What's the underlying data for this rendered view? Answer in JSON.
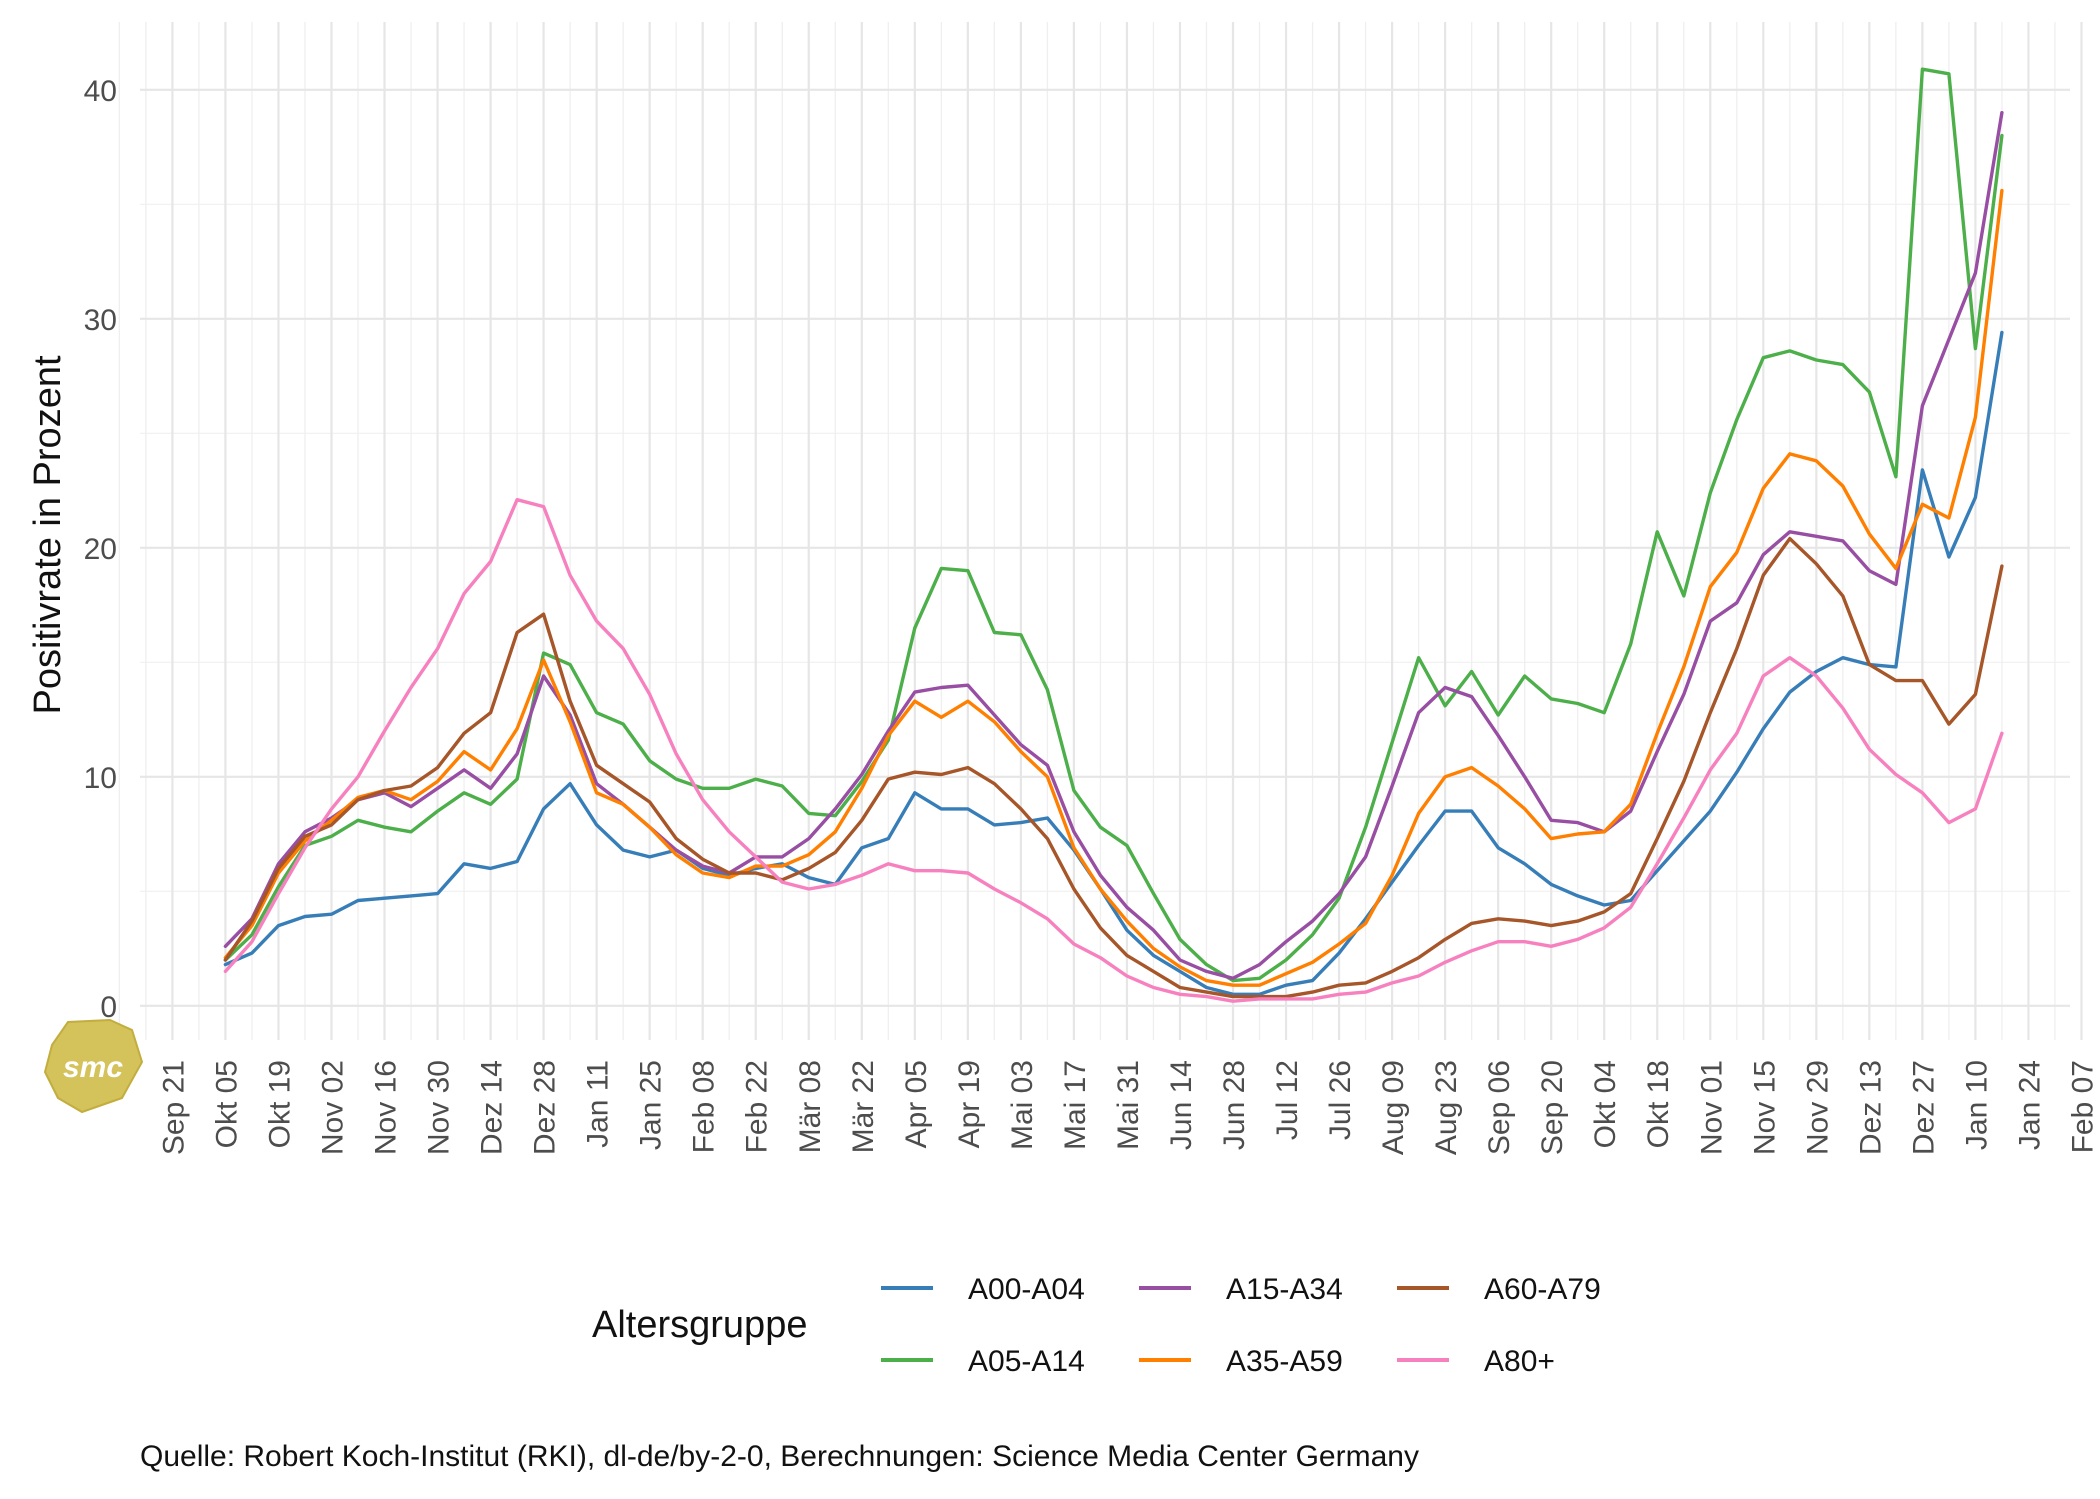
{
  "chart_data": {
    "type": "line",
    "ylabel": "Positivrate in Prozent",
    "xlabel": "",
    "ylim": [
      -2,
      43.2
    ],
    "y_ticks": [
      0,
      10,
      20,
      30,
      40
    ],
    "grid": true,
    "legend_title": "Altersgruppe",
    "legend_position": "bottom",
    "caption": "Quelle: Robert Koch-Institut (RKI), dl-de/by-2-0, Berechnungen: Science Media Center Germany",
    "logo_text": "smc",
    "x_tick_labels": [
      "Sep 21",
      "Okt 05",
      "Okt 19",
      "Nov 02",
      "Nov 16",
      "Nov 30",
      "Dez 14",
      "Dez 28",
      "Jan 11",
      "Jan 25",
      "Feb 08",
      "Feb 22",
      "Mär 08",
      "Mär 22",
      "Apr 05",
      "Apr 19",
      "Mai 03",
      "Mai 17",
      "Mai 31",
      "Jun 14",
      "Jun 28",
      "Jul 12",
      "Jul 26",
      "Aug 09",
      "Aug 23",
      "Sep 06",
      "Sep 20",
      "Okt 04",
      "Okt 18",
      "Nov 01",
      "Nov 15",
      "Nov 29",
      "Dez 13",
      "Dez 27",
      "Jan 10",
      "Jan 24",
      "Feb 07"
    ],
    "series": [
      {
        "name": "A00-A04",
        "color": "#377eb8",
        "values": [
          1.8,
          2.3,
          3.5,
          3.9,
          4.0,
          4.6,
          4.7,
          4.8,
          4.9,
          6.2,
          6.0,
          6.3,
          8.6,
          9.7,
          7.9,
          6.8,
          6.5,
          6.8,
          6.0,
          5.7,
          6.0,
          6.2,
          5.6,
          5.3,
          6.9,
          7.3,
          9.3,
          8.6,
          8.6,
          7.9,
          8.0,
          8.2,
          6.8,
          5.1,
          3.3,
          2.2,
          1.5,
          0.8,
          0.5,
          0.5,
          0.9,
          1.1,
          2.3,
          3.8,
          5.4,
          7.0,
          8.5,
          8.5,
          6.9,
          6.2,
          5.3,
          4.8,
          4.4,
          4.6,
          5.9,
          7.2,
          8.5,
          10.2,
          12.1,
          13.7,
          14.6,
          15.2,
          14.9,
          14.8,
          23.4,
          19.6,
          22.2,
          29.4
        ]
      },
      {
        "name": "A05-A14",
        "color": "#4daf4a",
        "values": [
          2.0,
          3.1,
          5.2,
          7.0,
          7.4,
          8.1,
          7.8,
          7.6,
          8.5,
          9.3,
          8.8,
          9.9,
          15.4,
          14.9,
          12.8,
          12.3,
          10.7,
          9.9,
          9.5,
          9.5,
          9.9,
          9.6,
          8.4,
          8.3,
          9.8,
          11.6,
          16.5,
          19.1,
          19.0,
          16.3,
          16.2,
          13.8,
          9.4,
          7.8,
          7.0,
          4.9,
          2.9,
          1.8,
          1.1,
          1.2,
          2.0,
          3.1,
          4.7,
          7.8,
          11.5,
          15.2,
          13.1,
          14.6,
          12.7,
          14.4,
          13.4,
          13.2,
          12.8,
          15.8,
          20.7,
          17.9,
          22.4,
          25.6,
          28.3,
          28.6,
          28.2,
          28.0,
          26.8,
          23.1,
          40.9,
          40.7,
          28.7,
          38.0
        ]
      },
      {
        "name": "A15-A34",
        "color": "#984ea3",
        "values": [
          2.6,
          3.8,
          6.2,
          7.6,
          8.2,
          9.0,
          9.3,
          8.7,
          9.5,
          10.3,
          9.5,
          11.0,
          14.4,
          12.7,
          9.7,
          8.8,
          7.8,
          6.8,
          6.1,
          5.8,
          6.5,
          6.5,
          7.3,
          8.6,
          10.1,
          12.0,
          13.7,
          13.9,
          14.0,
          12.7,
          11.4,
          10.5,
          7.6,
          5.7,
          4.3,
          3.3,
          2.0,
          1.5,
          1.2,
          1.8,
          2.8,
          3.7,
          4.9,
          6.5,
          9.6,
          12.8,
          13.9,
          13.5,
          11.8,
          10.0,
          8.1,
          8.0,
          7.6,
          8.5,
          11.1,
          13.6,
          16.8,
          17.6,
          19.7,
          20.7,
          20.5,
          20.3,
          19.0,
          18.4,
          26.2,
          29.1,
          32.0,
          39.0
        ]
      },
      {
        "name": "A35-A59",
        "color": "#ff7f00",
        "values": [
          2.1,
          3.5,
          5.8,
          7.2,
          8.1,
          9.1,
          9.4,
          9.0,
          9.8,
          11.1,
          10.3,
          12.1,
          15.1,
          12.4,
          9.3,
          8.8,
          7.8,
          6.6,
          5.8,
          5.6,
          6.1,
          6.1,
          6.6,
          7.6,
          9.5,
          11.8,
          13.3,
          12.6,
          13.3,
          12.4,
          11.1,
          10.0,
          6.9,
          5.1,
          3.7,
          2.5,
          1.7,
          1.1,
          0.9,
          0.9,
          1.4,
          1.9,
          2.7,
          3.6,
          5.7,
          8.4,
          10.0,
          10.4,
          9.6,
          8.6,
          7.3,
          7.5,
          7.6,
          8.8,
          11.9,
          14.8,
          18.3,
          19.8,
          22.6,
          24.1,
          23.8,
          22.7,
          20.6,
          19.1,
          21.9,
          21.3,
          25.7,
          35.6
        ]
      },
      {
        "name": "A60-A79",
        "color": "#a65628",
        "values": [
          2.0,
          3.7,
          6.0,
          7.4,
          7.9,
          9.0,
          9.4,
          9.6,
          10.4,
          11.9,
          12.8,
          16.3,
          17.1,
          13.3,
          10.5,
          9.7,
          8.9,
          7.3,
          6.4,
          5.8,
          5.8,
          5.5,
          6.0,
          6.7,
          8.1,
          9.9,
          10.2,
          10.1,
          10.4,
          9.7,
          8.6,
          7.3,
          5.1,
          3.4,
          2.2,
          1.5,
          0.8,
          0.6,
          0.4,
          0.4,
          0.4,
          0.6,
          0.9,
          1.0,
          1.5,
          2.1,
          2.9,
          3.6,
          3.8,
          3.7,
          3.5,
          3.7,
          4.1,
          4.9,
          7.3,
          9.8,
          12.8,
          15.6,
          18.8,
          20.4,
          19.3,
          17.9,
          14.9,
          14.2,
          14.2,
          12.3,
          13.6,
          19.2
        ]
      },
      {
        "name": "A80+",
        "color": "#f781bf",
        "values": [
          1.5,
          2.8,
          4.9,
          6.9,
          8.6,
          10.0,
          12.0,
          13.9,
          15.6,
          18.0,
          19.4,
          22.1,
          21.8,
          18.8,
          16.8,
          15.6,
          13.6,
          11.0,
          9.0,
          7.6,
          6.5,
          5.4,
          5.1,
          5.3,
          5.7,
          6.2,
          5.9,
          5.9,
          5.8,
          5.1,
          4.5,
          3.8,
          2.7,
          2.1,
          1.3,
          0.8,
          0.5,
          0.4,
          0.2,
          0.3,
          0.3,
          0.3,
          0.5,
          0.6,
          1.0,
          1.3,
          1.9,
          2.4,
          2.8,
          2.8,
          2.6,
          2.9,
          3.4,
          4.3,
          6.2,
          8.2,
          10.3,
          11.9,
          14.4,
          15.2,
          14.4,
          13.0,
          11.2,
          10.1,
          9.3,
          8.0,
          8.6,
          11.9
        ]
      }
    ]
  }
}
